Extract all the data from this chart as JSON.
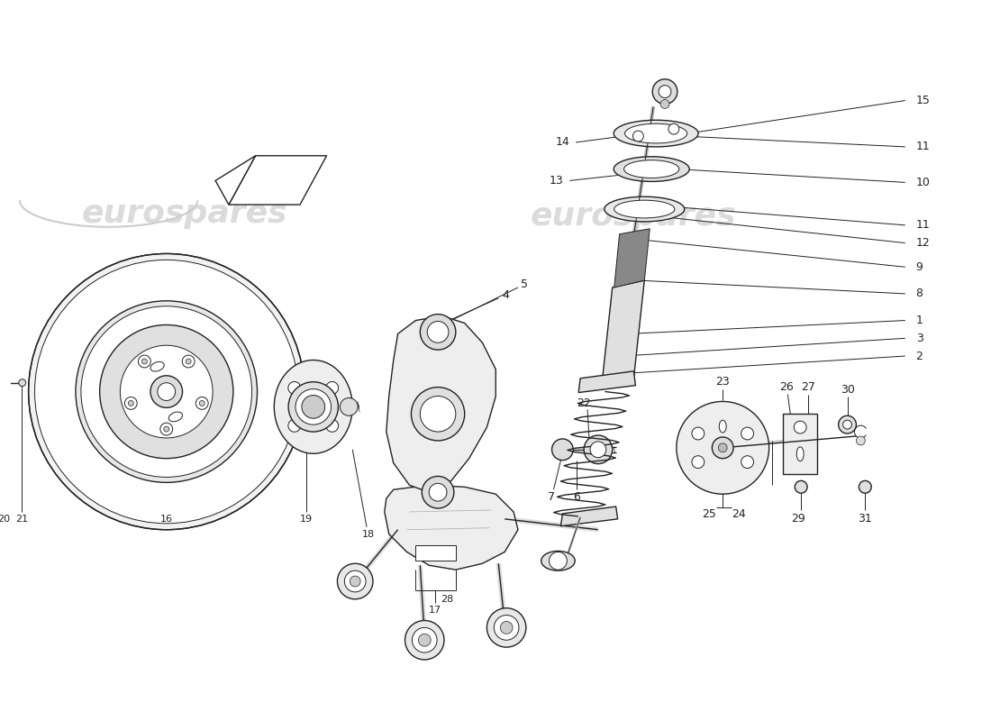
{
  "background_color": "#ffffff",
  "watermark_text": "eurospares",
  "watermark_color": "#cccccc",
  "fig_width": 11.0,
  "fig_height": 8.0,
  "line_color": "#222222",
  "callout_color": "#111111"
}
